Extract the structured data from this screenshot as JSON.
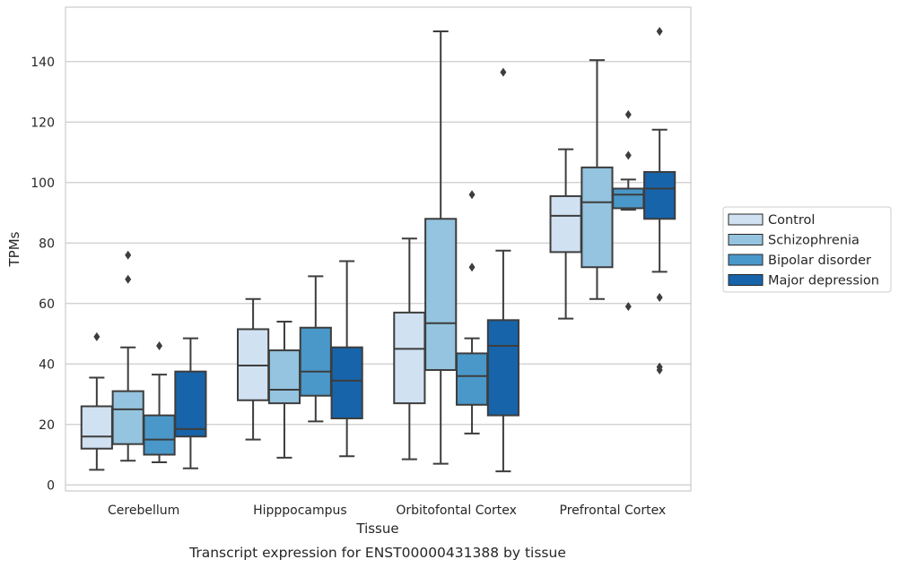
{
  "caption": "Transcript expression for ENST00000431388 by tissue",
  "chart_data": {
    "type": "box",
    "xlabel": "Tissue",
    "ylabel": "TPMs",
    "ylim": [
      -2,
      158
    ],
    "yticks": [
      0,
      20,
      40,
      60,
      80,
      100,
      120,
      140
    ],
    "grid": "horizontal",
    "legend_position": "right",
    "categories": [
      "Cerebellum",
      "Hipppocampus",
      "Orbitofontal Cortex",
      "Prefrontal Cortex"
    ],
    "series": [
      {
        "name": "Control",
        "color": "#d0e1f2",
        "boxes": [
          {
            "whisker_low": 5,
            "q1": 12,
            "median": 16,
            "q3": 26,
            "whisker_high": 35.5,
            "outliers": [
              49
            ]
          },
          {
            "whisker_low": 15,
            "q1": 28,
            "median": 39.5,
            "q3": 51.5,
            "whisker_high": 61.5,
            "outliers": []
          },
          {
            "whisker_low": 8.5,
            "q1": 27,
            "median": 45,
            "q3": 57,
            "whisker_high": 81.5,
            "outliers": []
          },
          {
            "whisker_low": 55,
            "q1": 77,
            "median": 89,
            "q3": 95.5,
            "whisker_high": 111,
            "outliers": []
          }
        ]
      },
      {
        "name": "Schizophrenia",
        "color": "#94c4df",
        "boxes": [
          {
            "whisker_low": 8,
            "q1": 13.5,
            "median": 25,
            "q3": 31,
            "whisker_high": 45.5,
            "outliers": [
              68,
              76
            ]
          },
          {
            "whisker_low": 9,
            "q1": 27,
            "median": 31.5,
            "q3": 44.5,
            "whisker_high": 54,
            "outliers": []
          },
          {
            "whisker_low": 7,
            "q1": 38,
            "median": 53.5,
            "q3": 88,
            "whisker_high": 150,
            "outliers": []
          },
          {
            "whisker_low": 61.5,
            "q1": 72,
            "median": 93.5,
            "q3": 105,
            "whisker_high": 140.5,
            "outliers": []
          }
        ]
      },
      {
        "name": "Bipolar disorder",
        "color": "#4a98c9",
        "boxes": [
          {
            "whisker_low": 7.5,
            "q1": 10,
            "median": 15,
            "q3": 23,
            "whisker_high": 36.5,
            "outliers": [
              46
            ]
          },
          {
            "whisker_low": 21,
            "q1": 29.5,
            "median": 37.5,
            "q3": 52,
            "whisker_high": 69,
            "outliers": []
          },
          {
            "whisker_low": 17,
            "q1": 26.5,
            "median": 36,
            "q3": 43.5,
            "whisker_high": 48.5,
            "outliers": [
              72,
              96
            ]
          },
          {
            "whisker_low": 91,
            "q1": 91.5,
            "median": 96,
            "q3": 98,
            "whisker_high": 101,
            "outliers": [
              59,
              109,
              122.5
            ]
          }
        ]
      },
      {
        "name": "Major depression",
        "color": "#1764ab",
        "boxes": [
          {
            "whisker_low": 5.5,
            "q1": 16,
            "median": 18.5,
            "q3": 37.5,
            "whisker_high": 48.5,
            "outliers": []
          },
          {
            "whisker_low": 9.5,
            "q1": 22,
            "median": 34.5,
            "q3": 45.5,
            "whisker_high": 74,
            "outliers": []
          },
          {
            "whisker_low": 4.5,
            "q1": 23,
            "median": 46,
            "q3": 54.5,
            "whisker_high": 77.5,
            "outliers": [
              136.5
            ]
          },
          {
            "whisker_low": 70.5,
            "q1": 88,
            "median": 98,
            "q3": 103.5,
            "whisker_high": 117.5,
            "outliers": [
              38,
              39,
              62,
              150
            ]
          }
        ]
      }
    ]
  }
}
